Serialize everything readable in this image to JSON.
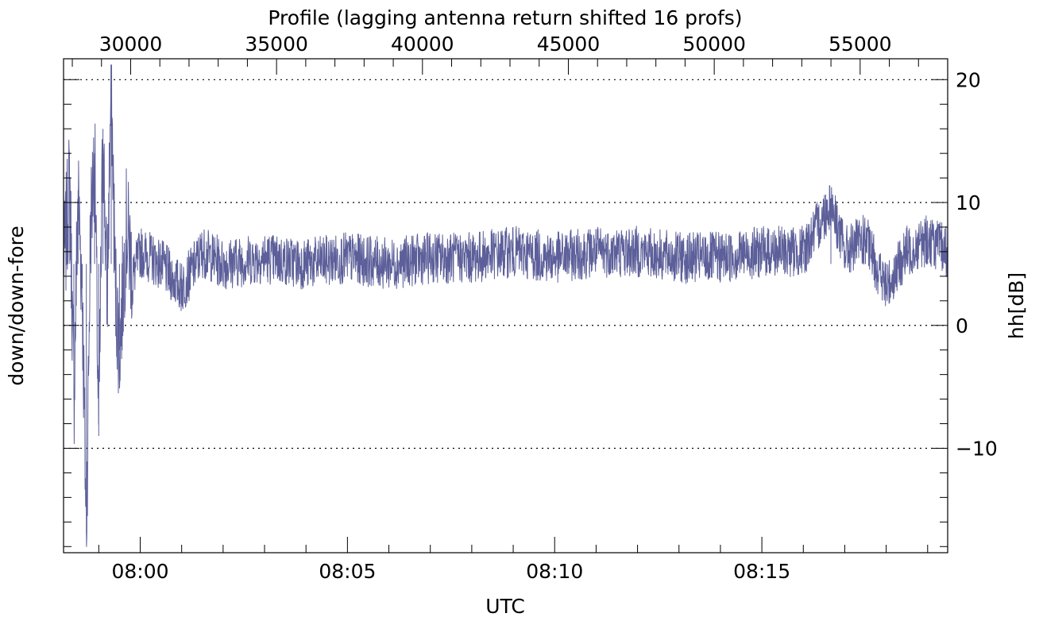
{
  "chart_data": {
    "type": "line",
    "title": "Profile (lagging antenna return shifted 16 profs)",
    "xlabel": "UTC",
    "ylabel_left": "down/down-fore",
    "ylabel_right": "hh[dB]",
    "x_range_minutes": [
      "07:58:09",
      "08:19:29"
    ],
    "ylim": [
      -18.5,
      21.7
    ],
    "grid": "dotted horizontal lines at y = -10, 0, 10, 20",
    "x_ticks": [
      {
        "t": "08:00",
        "label": "08:00"
      },
      {
        "t": "08:05",
        "label": "08:05"
      },
      {
        "t": "08:10",
        "label": "08:10"
      },
      {
        "t": "08:15",
        "label": "08:15"
      }
    ],
    "top_axis": {
      "label": "Profile (lagging antenna return shifted 16 profs)",
      "ticks": [
        "30000",
        "35000",
        "40000",
        "45000",
        "50000",
        "55000"
      ]
    },
    "y_ticks": [
      "20",
      "10",
      "0",
      "−10"
    ],
    "line_color": "#5c5f99",
    "series": [
      {
        "x": [
          "07:58:10",
          "07:58:18",
          "07:58:24",
          "07:58:30",
          "07:58:36",
          "07:58:42",
          "07:58:48",
          "07:58:54",
          "07:59:00",
          "07:59:06",
          "07:59:12",
          "07:59:18",
          "07:59:24",
          "07:59:30",
          "07:59:40",
          "07:59:50",
          "08:00:00",
          "08:00:30",
          "08:01:00",
          "08:01:30",
          "08:02:00",
          "08:03:00",
          "08:04:00",
          "08:05:00",
          "08:06:00",
          "08:07:00",
          "08:08:00",
          "08:09:00",
          "08:10:00",
          "08:11:00",
          "08:12:00",
          "08:13:00",
          "08:14:00",
          "08:15:00",
          "08:16:00",
          "08:16:40",
          "08:17:00",
          "08:17:30",
          "08:18:00",
          "08:18:30",
          "08:19:00",
          "08:19:29"
        ],
        "y": [
          5,
          12,
          -6,
          11,
          3,
          -17,
          8,
          14,
          -9,
          16,
          2,
          20,
          3,
          -2,
          8,
          4,
          6,
          5,
          3,
          6,
          5,
          5.5,
          5,
          5.5,
          5,
          5.5,
          5.5,
          6,
          5.5,
          6,
          6,
          5.5,
          5.5,
          6,
          6,
          10,
          6,
          7,
          3,
          6,
          7,
          6
        ]
      }
    ]
  }
}
